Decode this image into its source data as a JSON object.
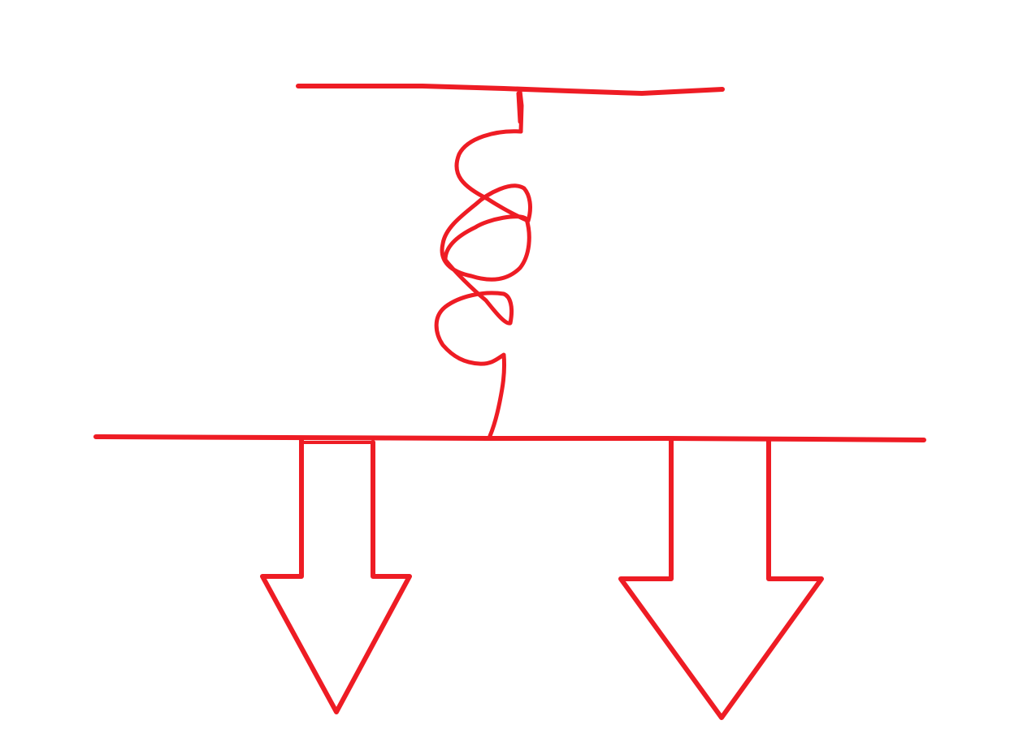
{
  "diagram": {
    "kind": "hand-drawn sketch: spring hanging from a support, holding a beam with two downward force arrows",
    "stroke_color": "#ee1c24",
    "background": "#ffffff",
    "elements": [
      {
        "id": "top-support-line",
        "icon": "support-line"
      },
      {
        "id": "coil-spring",
        "icon": "spring-icon"
      },
      {
        "id": "beam-line",
        "icon": "beam-line"
      },
      {
        "id": "left-down-arrow",
        "icon": "arrow-down-icon"
      },
      {
        "id": "right-down-arrow",
        "icon": "arrow-down-icon"
      }
    ]
  }
}
